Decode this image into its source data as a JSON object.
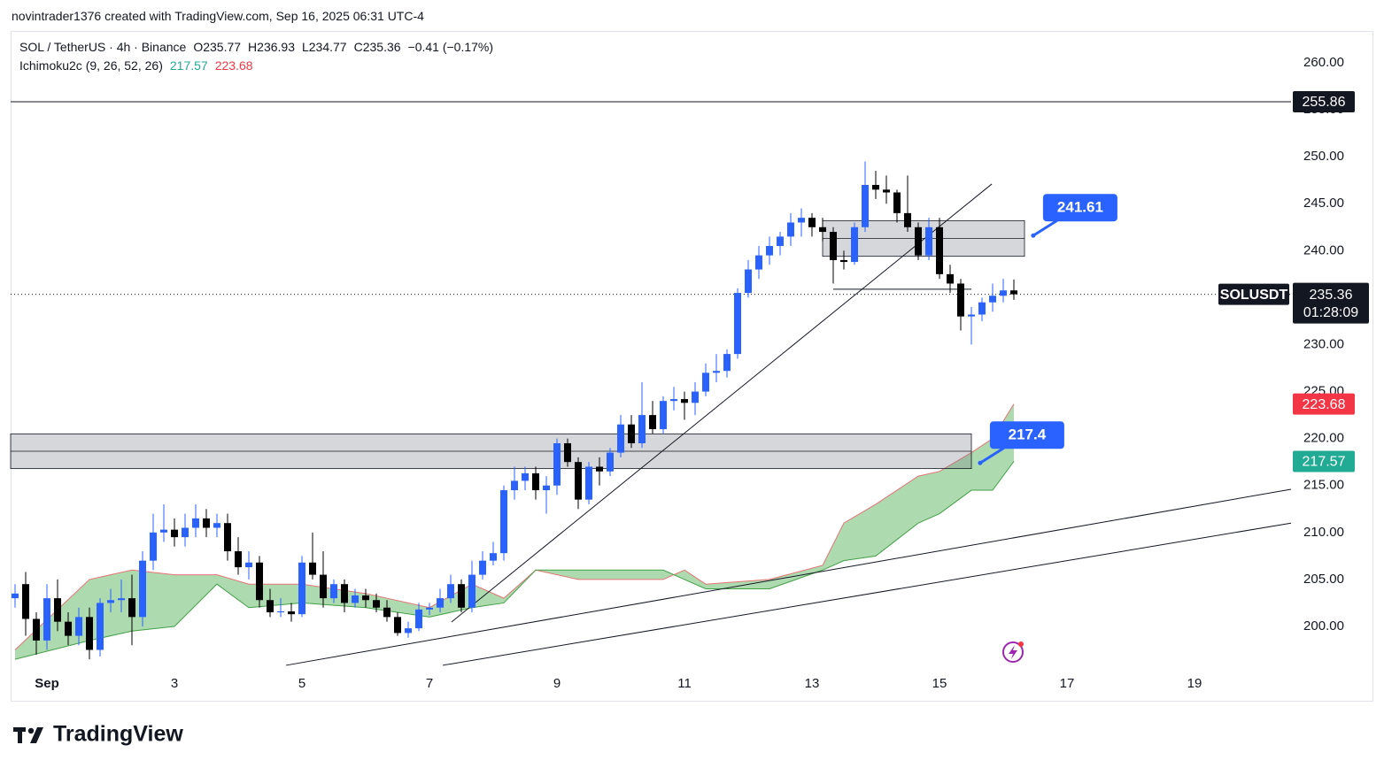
{
  "header": {
    "credit": "novintrader1376 created with TradingView.com, Sep 16, 2025 06:31 UTC-4",
    "symbol": "SOL / TetherUS · 4h · Binance",
    "open": "O235.77",
    "high": "H236.93",
    "low": "L234.77",
    "close": "C235.36",
    "change": "−0.41 (−0.17%)",
    "indicator": "Ichimoku2c (9, 26, 52, 26)"
  },
  "chart_data": {
    "type": "candlestick",
    "xlim": [
      -13.67,
      468.33
    ],
    "ylim": [
      195.1,
      263.39
    ],
    "xticks": [
      {
        "value": 0,
        "label": "Sep"
      },
      {
        "value": 48,
        "label": "3"
      },
      {
        "value": 96,
        "label": "5"
      },
      {
        "value": 144,
        "label": "7"
      },
      {
        "value": 192,
        "label": "9"
      },
      {
        "value": 240,
        "label": "11"
      },
      {
        "value": 288,
        "label": "13"
      },
      {
        "value": 336,
        "label": "15"
      },
      {
        "value": 384,
        "label": "17"
      },
      {
        "value": 432,
        "label": "19"
      }
    ],
    "yticks": [
      {
        "value": 200,
        "label": "200.00"
      },
      {
        "value": 205,
        "label": "205.00"
      },
      {
        "value": 210,
        "label": "210.00"
      },
      {
        "value": 215,
        "label": "215.00"
      },
      {
        "value": 220,
        "label": "220.00"
      },
      {
        "value": 225,
        "label": "225.00"
      },
      {
        "value": 230,
        "label": "230.00"
      },
      {
        "value": 235,
        "label": "235.00"
      },
      {
        "value": 240,
        "label": "240.00"
      },
      {
        "value": 245,
        "label": "245.00"
      },
      {
        "value": 250,
        "label": "250.00"
      },
      {
        "value": 255,
        "label": "255.00"
      },
      {
        "value": 260,
        "label": "260.00"
      }
    ],
    "up_color": "#2962ff",
    "down_color": "#000000",
    "series": [
      {
        "x": [
          -12,
          -8,
          -4,
          0,
          4,
          8,
          12,
          16,
          20,
          24,
          28,
          32,
          36,
          40,
          44,
          48,
          52,
          56,
          60,
          64,
          68,
          72,
          76,
          80,
          84,
          88,
          92,
          96,
          100,
          104,
          108,
          112,
          116,
          120,
          124,
          128,
          132,
          136,
          140,
          144,
          148,
          152,
          156,
          160,
          164,
          168,
          172,
          176,
          180,
          184,
          188,
          192,
          196,
          200,
          204,
          208,
          212,
          216,
          220,
          224,
          228,
          232,
          236,
          240,
          244,
          248,
          252,
          256,
          260,
          264,
          268,
          272,
          276,
          280,
          284,
          288,
          292,
          296,
          300,
          304,
          308,
          312,
          316,
          320,
          324,
          328,
          332,
          336,
          340,
          344,
          348,
          352,
          356,
          360,
          364
        ],
        "open": [
          203,
          204.5,
          200.8,
          198.5,
          203,
          200.5,
          199,
          201,
          197.5,
          202.5,
          202.8,
          203,
          201,
          207,
          210,
          210.3,
          209.5,
          210.5,
          211.5,
          210.5,
          211,
          208,
          206.3,
          206.8,
          202.8,
          201.5,
          201.6,
          201.3,
          206.8,
          205.5,
          203,
          204.5,
          202.5,
          203.3,
          202.8,
          202,
          201,
          199.3,
          199.8,
          201.8,
          202,
          203,
          204.5,
          202,
          205.5,
          207,
          207.8,
          214.5,
          215.5,
          216.3,
          214.5,
          215,
          219.5,
          217.5,
          213.5,
          217,
          216.5,
          218.5,
          221.5,
          219.5,
          222.5,
          221,
          224,
          224.2,
          223.8,
          225,
          227,
          227.2,
          229,
          235.5,
          238,
          239.5,
          240.5,
          241.5,
          243,
          243.5,
          242.5,
          242,
          239,
          238.8,
          242.5,
          247,
          246.5,
          246.2,
          244,
          242.5,
          239.5,
          242.5,
          237.5,
          236.5,
          233,
          233.2,
          234.5,
          235.2,
          235.77
        ],
        "high": [
          204.5,
          205.8,
          201.5,
          204.5,
          205,
          201.5,
          202,
          202,
          203,
          204,
          205,
          205.5,
          208,
          212,
          213,
          211.5,
          212,
          213,
          212.5,
          212,
          212,
          209.5,
          208,
          207.5,
          204,
          203,
          202.5,
          207.5,
          210,
          208,
          205,
          205,
          204,
          204,
          203.5,
          202.8,
          201.5,
          200.5,
          202.5,
          202.5,
          204,
          205.5,
          205,
          207,
          208,
          209,
          215,
          217,
          217,
          217,
          216,
          220,
          220,
          218,
          217.5,
          218,
          219,
          222.5,
          222.5,
          226,
          224,
          224.5,
          225.5,
          225,
          226,
          228,
          229,
          229.5,
          236,
          239,
          240.5,
          241.5,
          242,
          244,
          244.5,
          244,
          243.5,
          242.5,
          240,
          243,
          249.5,
          248.5,
          248,
          246.5,
          248,
          243,
          243.5,
          243.5,
          238.5,
          237,
          234,
          235,
          236.5,
          237,
          236.93
        ],
        "low": [
          202,
          199,
          197,
          197.5,
          199.5,
          198,
          198,
          196.5,
          196.8,
          201.5,
          201.5,
          198,
          200,
          206,
          209,
          208.5,
          208.5,
          209.5,
          209.5,
          209.5,
          207,
          205.5,
          205,
          202,
          201,
          201,
          200.5,
          201,
          205,
          202,
          202.5,
          201.5,
          202,
          202,
          201.5,
          200.5,
          199,
          198.8,
          199.5,
          201.2,
          201.5,
          202.5,
          201.5,
          201.5,
          205,
          206.5,
          207,
          213.5,
          214.5,
          213.5,
          212,
          214,
          217,
          212.5,
          213,
          215,
          216,
          218,
          219,
          219,
          220.5,
          220.5,
          223,
          222,
          222.5,
          224.5,
          226,
          226.5,
          228.5,
          235,
          237,
          238.5,
          239.5,
          240.5,
          241.5,
          241.5,
          241,
          236.5,
          238,
          238.5,
          242,
          245.5,
          245,
          243,
          242,
          239,
          239,
          237,
          235.5,
          231.5,
          230,
          232.5,
          233.5,
          234.5,
          234.77
        ],
        "close": [
          203.5,
          200.8,
          198.5,
          203,
          200.5,
          199,
          201,
          197.5,
          202.5,
          202.8,
          203,
          201,
          207,
          210,
          210.3,
          209.5,
          210.5,
          211.5,
          210.5,
          211,
          208,
          206.3,
          206.8,
          202.8,
          201.5,
          201.6,
          201.3,
          206.8,
          205.5,
          203,
          204.5,
          202.5,
          203.3,
          202.8,
          202,
          201,
          199.3,
          199.8,
          201.8,
          202,
          203,
          204.5,
          202,
          205.5,
          207,
          207.8,
          214.5,
          215.5,
          216.3,
          214.5,
          215,
          219.5,
          217.5,
          213.5,
          217,
          216.5,
          218.5,
          221.5,
          219.5,
          222.5,
          221,
          224,
          224.2,
          223.8,
          225,
          227,
          227.2,
          229,
          235.5,
          238,
          239.5,
          240.5,
          241.5,
          243,
          243.5,
          242.5,
          242,
          239,
          238.8,
          242.5,
          247,
          246.5,
          246.2,
          244,
          242.5,
          239.5,
          242.5,
          237.5,
          236.5,
          233,
          233.2,
          234.5,
          235.2,
          235.77,
          235.36
        ]
      }
    ],
    "cloud": {
      "fill": "#a5d6a7",
      "a_color": "#e57373",
      "b_color": "#43a047",
      "x": [
        -12,
        16,
        32,
        48,
        64,
        76,
        96,
        120,
        144,
        160,
        172,
        184,
        200,
        232,
        240,
        248,
        272,
        292,
        300,
        312,
        328,
        336,
        348,
        356,
        364
      ],
      "span_a": [
        197.5,
        205,
        206,
        205.5,
        205.5,
        204.5,
        204.5,
        203.5,
        202,
        204.5,
        203,
        206,
        205,
        205,
        206,
        204.5,
        205,
        206.5,
        211,
        213,
        216,
        216.5,
        218.5,
        220,
        223.68
      ],
      "span_b": [
        196.5,
        198.5,
        199.5,
        200,
        204.5,
        202,
        202.5,
        202,
        201,
        202,
        202.5,
        206,
        206,
        206,
        205,
        204,
        204,
        206,
        207,
        207.5,
        211,
        212,
        214.5,
        214.5,
        217.57
      ]
    },
    "horizontal_line": 255.86,
    "support_line": {
      "x": [
        296,
        348
      ],
      "y": 235.9
    },
    "zones": [
      {
        "x": [
          292,
          368
        ],
        "top": 243.2,
        "mid": 241.3,
        "bottom": 239.4
      },
      {
        "x": [
          -13.67,
          348
        ],
        "top": 220.5,
        "mid": 218.65,
        "bottom": 216.8
      }
    ],
    "trendlines": [
      {
        "x": [
          152.3,
          355.7
        ],
        "y": [
          200.47,
          247.1
        ]
      },
      {
        "x": [
          90,
          468.33
        ],
        "y": [
          195.86,
          214.6
        ]
      },
      {
        "x": [
          149,
          468.33
        ],
        "y": [
          195.86,
          211.0
        ]
      }
    ],
    "annotations": [
      {
        "x": 371.3,
        "value": 241.61
      },
      {
        "x": 351.3,
        "value": 217.4
      }
    ],
    "symbol_label": "SOLUSDT",
    "countdown": "01:28:09"
  },
  "footer": {
    "logo": "TradingView"
  }
}
